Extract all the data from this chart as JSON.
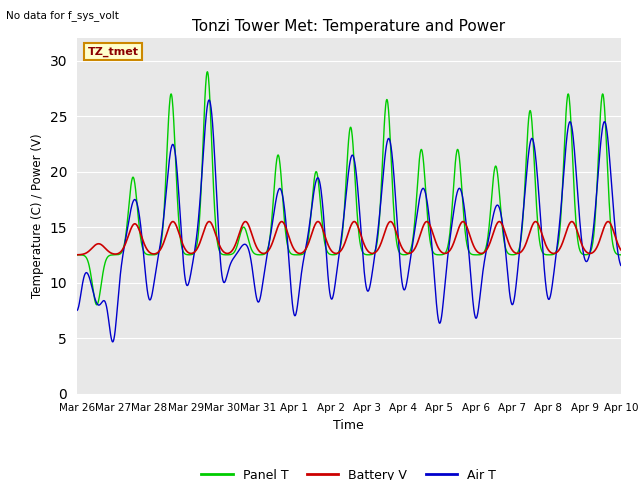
{
  "title": "Tonzi Tower Met: Temperature and Power",
  "subtitle": "No data for f_sys_volt",
  "xlabel": "Time",
  "ylabel": "Temperature (C) / Power (V)",
  "legend_label": "TZ_tmet",
  "ylim": [
    0,
    32
  ],
  "yticks": [
    0,
    5,
    10,
    15,
    20,
    25,
    30
  ],
  "xtick_labels": [
    "Mar 26",
    "Mar 27",
    "Mar 28",
    "Mar 29",
    "Mar 30",
    "Mar 31",
    "Apr 1",
    "Apr 2",
    "Apr 3",
    "Apr 4",
    "Apr 5",
    "Apr 6",
    "Apr 7",
    "Apr 8",
    "Apr 9",
    "Apr 10"
  ],
  "color_panel": "#00cc00",
  "color_battery": "#cc0000",
  "color_air": "#0000cc",
  "bg_color": "#e8e8e8",
  "legend_items": [
    {
      "label": "Panel T",
      "color": "#00cc00"
    },
    {
      "label": "Battery V",
      "color": "#cc0000"
    },
    {
      "label": "Air T",
      "color": "#0000cc"
    }
  ]
}
